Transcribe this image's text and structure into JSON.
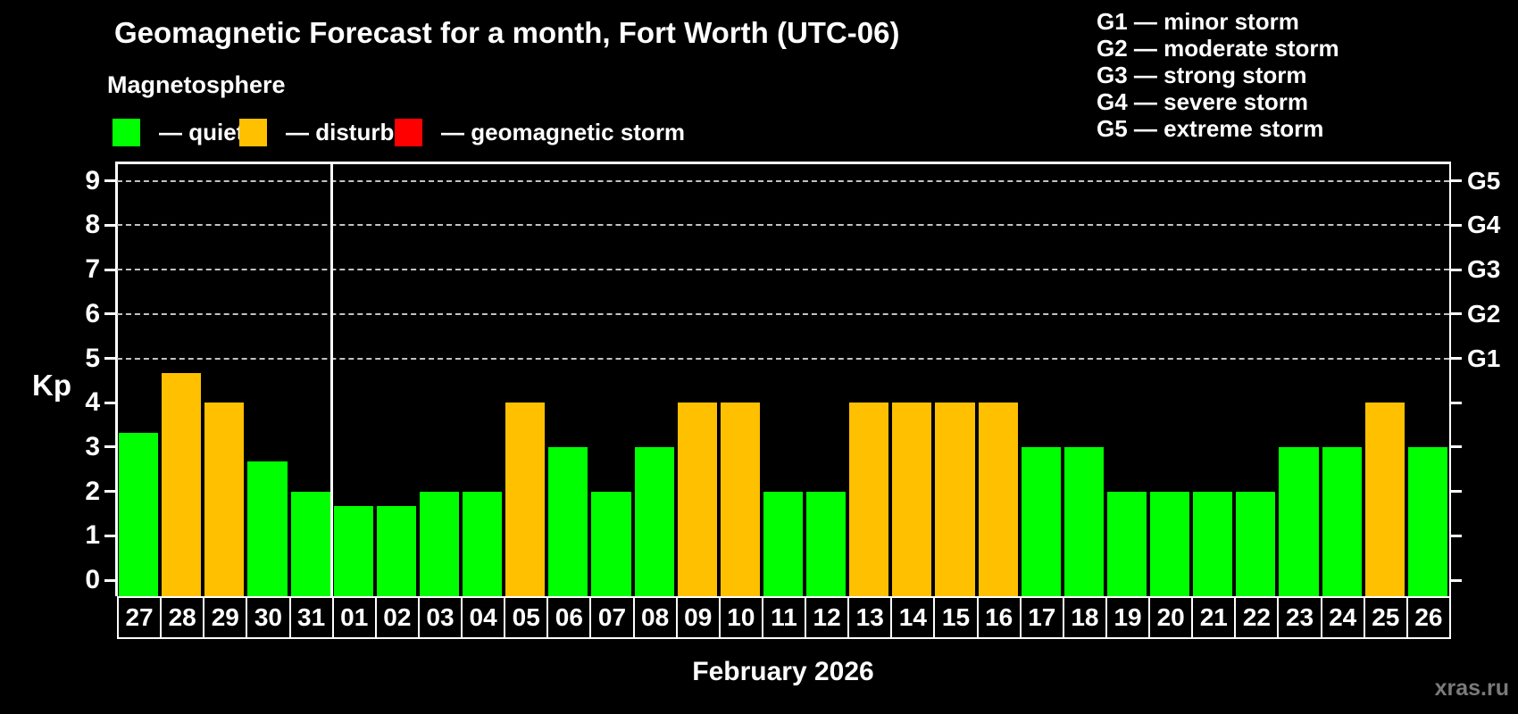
{
  "title": "Geomagnetic Forecast for a month, Fort Worth (UTC-06)",
  "subtitle": "Magnetosphere",
  "watermark": "xras.ru",
  "legend": {
    "items": [
      {
        "name": "quiet",
        "label": "— quiet",
        "color": "#00ff00"
      },
      {
        "name": "disturbed",
        "label": "— disturbed",
        "color": "#ffc000"
      },
      {
        "name": "storm",
        "label": "— geomagnetic storm",
        "color": "#ff0000"
      }
    ]
  },
  "g_legend": [
    "G1 — minor storm",
    "G2 — moderate storm",
    "G3 — strong storm",
    "G4 — severe storm",
    "G5 — extreme storm"
  ],
  "chart_data": {
    "type": "bar",
    "title": "Geomagnetic Forecast for a month, Fort Worth (UTC-06)",
    "xlabel": "February 2026",
    "ylabel": "Kp",
    "ylim": [
      0,
      9
    ],
    "y_ticks": [
      "0",
      "1",
      "2",
      "3",
      "4",
      "5",
      "6",
      "7",
      "8",
      "9"
    ],
    "grid_levels": [
      5,
      6,
      7,
      8,
      9
    ],
    "grid_style": "dashed",
    "legend_position": "top",
    "right_axis": [
      {
        "level": 5,
        "label": "G1"
      },
      {
        "level": 6,
        "label": "G2"
      },
      {
        "level": 7,
        "label": "G3"
      },
      {
        "level": 8,
        "label": "G4"
      },
      {
        "level": 9,
        "label": "G5"
      }
    ],
    "month_separator_after": "31",
    "categories": [
      "27",
      "28",
      "29",
      "30",
      "31",
      "01",
      "02",
      "03",
      "04",
      "05",
      "06",
      "07",
      "08",
      "09",
      "10",
      "11",
      "12",
      "13",
      "14",
      "15",
      "16",
      "17",
      "18",
      "19",
      "20",
      "21",
      "22",
      "23",
      "24",
      "25",
      "26"
    ],
    "values": [
      3.33,
      4.67,
      4,
      2.67,
      2,
      1.67,
      1.67,
      2,
      2,
      4,
      3,
      2,
      3,
      4,
      4,
      2,
      2,
      4,
      4,
      4,
      4,
      3,
      3,
      2,
      2,
      2,
      2,
      3,
      3,
      4,
      3
    ],
    "statuses": [
      "quiet",
      "disturbed",
      "disturbed",
      "quiet",
      "quiet",
      "quiet",
      "quiet",
      "quiet",
      "quiet",
      "disturbed",
      "quiet",
      "quiet",
      "quiet",
      "disturbed",
      "disturbed",
      "quiet",
      "quiet",
      "disturbed",
      "disturbed",
      "disturbed",
      "disturbed",
      "quiet",
      "quiet",
      "quiet",
      "quiet",
      "quiet",
      "quiet",
      "quiet",
      "quiet",
      "disturbed",
      "quiet"
    ],
    "palette": {
      "quiet": "#00ff00",
      "disturbed": "#ffc000",
      "storm": "#ff0000"
    }
  }
}
